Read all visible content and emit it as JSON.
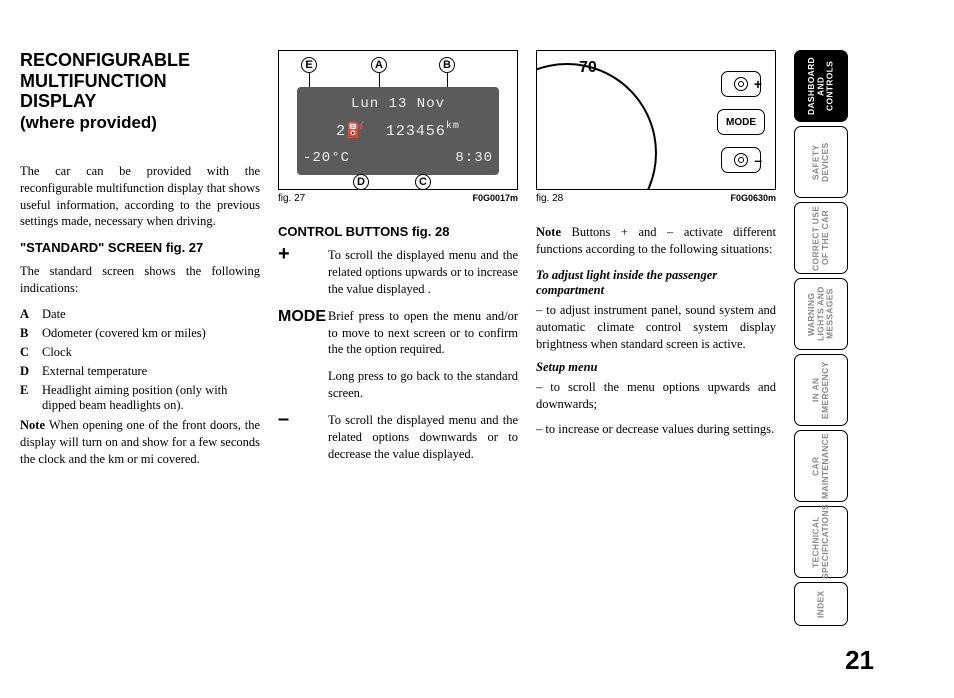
{
  "title_l1": "RECONFIGURABLE",
  "title_l2": "MULTIFUNCTION",
  "title_l3": "DISPLAY",
  "title_l4": "(where provided)",
  "intro": "The car can be provided with the reconfigurable multifunction display that shows useful information, according to the previous settings made, necessary when driving.",
  "standard_head": "\"STANDARD\" SCREEN fig. 27",
  "standard_lead": "The standard screen shows the following indications:",
  "defs": {
    "A": "Date",
    "B": "Odometer (covered km or miles)",
    "C": "Clock",
    "D": "External temperature",
    "E": "Headlight aiming position (only with dipped beam headlights on)."
  },
  "note1": "When opening one of the front doors, the display will turn on and show for a few seconds the clock and the km or mi covered.",
  "fig27_label": "fig. 27",
  "fig27_code": "F0G0017m",
  "fig27_display": {
    "date": "Lun 13 Nov",
    "odo": "123456",
    "odo_unit": "km",
    "temp": "-20°C",
    "clock": "8:30",
    "aim": "2"
  },
  "callouts": {
    "A": "A",
    "B": "B",
    "C": "C",
    "D": "D",
    "E": "E"
  },
  "controls_head": "CONTROL BUTTONS fig. 28",
  "plus_txt": "To scroll the displayed menu and the related options upwards or to increase the value displayed .",
  "mode_label": "MODE",
  "mode_txt1": "Brief press to open the menu and/or to move to next screen or to confirm the the option required.",
  "mode_txt2": "Long press to go back to the standard screen.",
  "minus_txt": "To scroll the displayed menu and the related options downwards or to decrease the value displayed.",
  "fig28_label": "fig. 28",
  "fig28_code": "F0G0630m",
  "fig28_num": "70",
  "fig28_mode": "MODE",
  "col3_note": "Buttons + and – activate different functions according to the following situations:",
  "adj_head": "To adjust light inside the passenger compartment",
  "adj_txt": "– to adjust instrument panel, sound system and automatic climate control system display brightness when standard screen is active.",
  "setup_head": "Setup menu",
  "setup1": "– to scroll the menu options upwards and downwards;",
  "setup2": "– to increase or decrease values during settings.",
  "tabs": {
    "t1": "DASHBOARD\nAND CONTROLS",
    "t2": "SAFETY\nDEVICES",
    "t3": "CORRECT USE\nOF THE CAR",
    "t4": "WARNING\nLIGHTS AND\nMESSAGES",
    "t5": "IN AN\nEMERGENCY",
    "t6": "CAR\nMAINTENANCE",
    "t7": "TECHNICAL\nSPECIFICATIONS",
    "t8": "INDEX"
  },
  "page_number": "21"
}
